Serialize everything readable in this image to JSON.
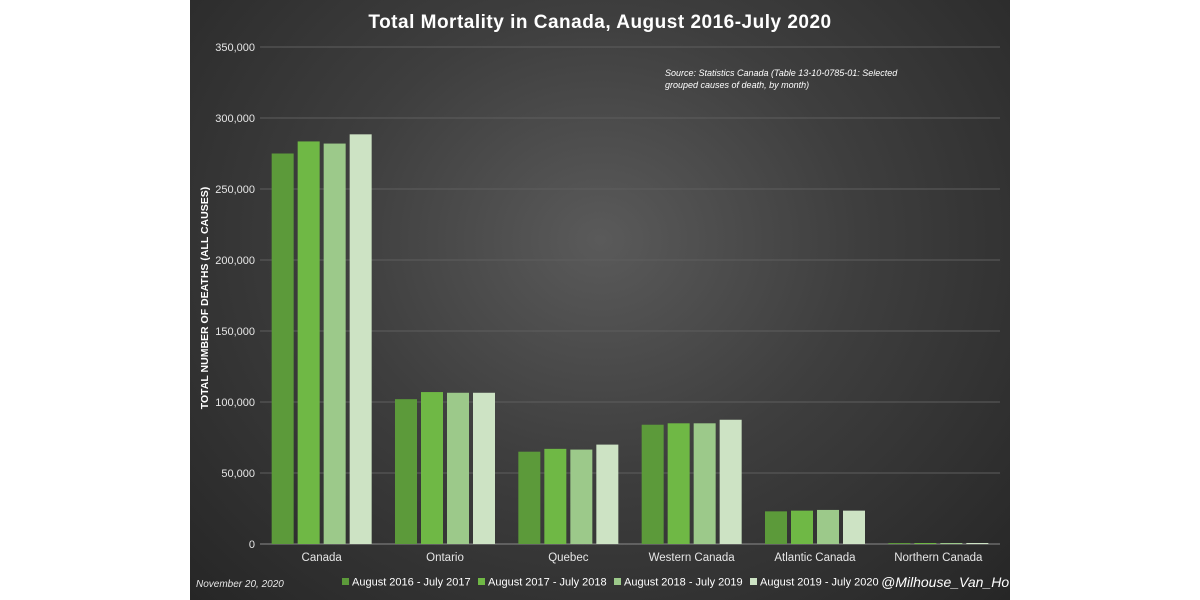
{
  "chart_data": {
    "type": "bar",
    "title": "Total Mortality in Canada, August 2016-July 2020",
    "ylabel": "TOTAL NUMBER OF DEATHS (ALL CAUSES)",
    "xlabel": "",
    "ylim": [
      0,
      350000
    ],
    "yticks": [
      0,
      50000,
      100000,
      150000,
      200000,
      250000,
      300000,
      350000
    ],
    "ytick_labels": [
      "0",
      "50,000",
      "100,000",
      "150,000",
      "200,000",
      "250,000",
      "300,000",
      "350,000"
    ],
    "grid": true,
    "legend_position": "bottom",
    "categories": [
      "Canada",
      "Ontario",
      "Quebec",
      "Western Canada",
      "Atlantic Canada",
      "Northern Canada"
    ],
    "series": [
      {
        "name": "August 2016 - July 2017",
        "color": "#5c9a3a",
        "values": [
          275000,
          102000,
          65000,
          84000,
          23000,
          700
        ]
      },
      {
        "name": "August 2017 - July 2018",
        "color": "#6fb845",
        "values": [
          283500,
          107000,
          67000,
          85000,
          23500,
          700
        ]
      },
      {
        "name": "August 2018 - July 2019",
        "color": "#9cc98a",
        "values": [
          282000,
          106500,
          66500,
          85000,
          24000,
          700
        ]
      },
      {
        "name": "August 2019 - July 2020",
        "color": "#cde3c4",
        "values": [
          288500,
          106500,
          70000,
          87500,
          23500,
          700
        ]
      }
    ],
    "annotation": {
      "line1": "Source: Statistics Canada (Table 13-10-0785-01: Selected",
      "line2": "grouped causes of death, by month)"
    }
  },
  "footer": {
    "date": "November 20, 2020",
    "handle": "@Milhouse_Van_Ho"
  }
}
